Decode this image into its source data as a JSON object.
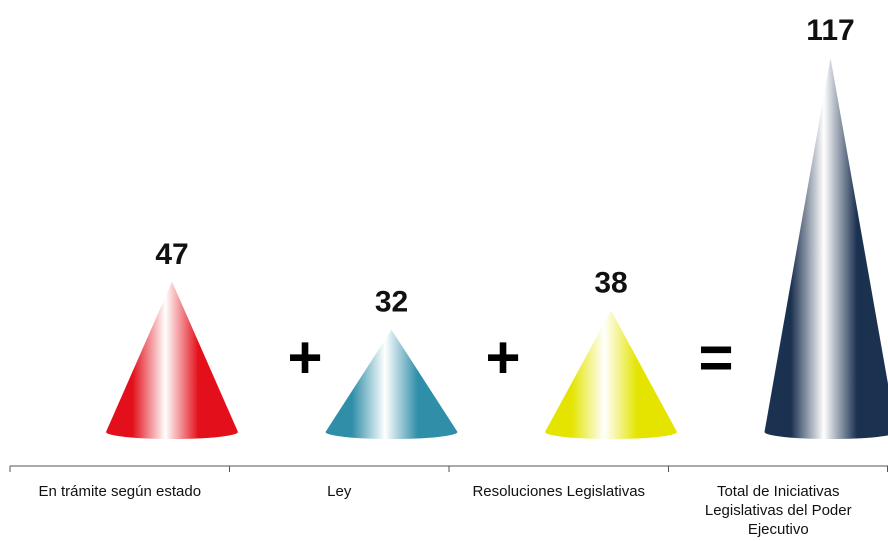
{
  "chart_data": {
    "type": "cone",
    "categories": [
      "En trámite según estado",
      "Ley",
      "Resoluciones Legislativas",
      "Total de Iniciativas Legislativas del Poder Ejecutivo"
    ],
    "values": [
      47,
      32,
      38,
      117
    ],
    "colors": [
      "#e3101b",
      "#2f8ea8",
      "#e4e400",
      "#1b3150"
    ],
    "operators": [
      "+",
      "+",
      "="
    ]
  }
}
